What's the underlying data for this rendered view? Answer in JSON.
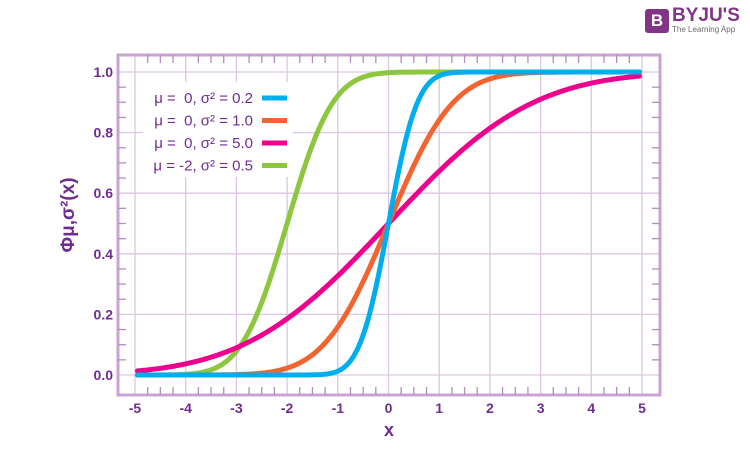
{
  "logo": {
    "brand": "BYJU'S",
    "tagline": "The Learning App",
    "mark": "B"
  },
  "chart_data": {
    "type": "line",
    "title": "",
    "xlabel": "x",
    "ylabel": "Φμ,σ²(x)",
    "xlim": [
      -5,
      5
    ],
    "ylim": [
      0,
      1
    ],
    "xticks": [
      "-5",
      "-4",
      "-3",
      "-2",
      "-1",
      "0",
      "1",
      "2",
      "3",
      "4",
      "5"
    ],
    "yticks": [
      "0.0",
      "0.2",
      "0.4",
      "0.6",
      "0.8",
      "1.0"
    ],
    "grid": true,
    "legend_position": "top-left",
    "series": [
      {
        "name": "μ =  0, σ² = 0.2",
        "mu": 0,
        "sigma2": 0.2,
        "color": "#00aeef"
      },
      {
        "name": "μ =  0, σ² = 1.0",
        "mu": 0,
        "sigma2": 1.0,
        "color": "#f26531"
      },
      {
        "name": "μ =  0, σ² = 5.0",
        "mu": 0,
        "sigma2": 5.0,
        "color": "#ec008c"
      },
      {
        "name": "μ = -2, σ² = 0.5",
        "mu": -2,
        "sigma2": 0.5,
        "color": "#8dc63f"
      }
    ]
  }
}
